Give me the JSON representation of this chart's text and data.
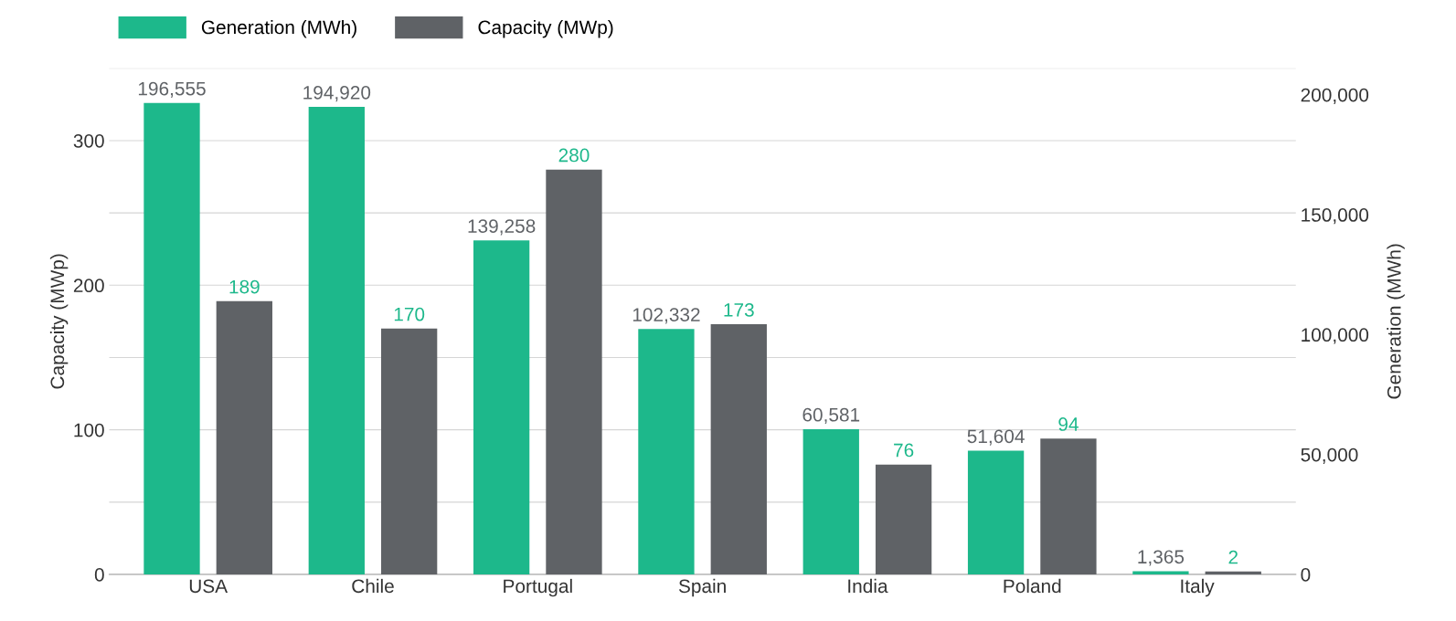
{
  "chart_data": {
    "type": "bar",
    "categories": [
      "USA",
      "Chile",
      "Portugal",
      "Spain",
      "India",
      "Poland",
      "Italy"
    ],
    "ylabel": "Capacity (MWp)",
    "y2label": "Generation (MWh)",
    "series": [
      {
        "name": "Generation (MWh)",
        "color": "#1db88b",
        "axis": "y2",
        "values": [
          196555,
          194920,
          139258,
          102332,
          60581,
          51604,
          1365
        ],
        "value_labels": [
          "196,555",
          "194,920",
          "139,258",
          "102,332",
          "60,581",
          "51,604",
          "1,365"
        ]
      },
      {
        "name": "Capacity (MWp)",
        "color": "#5f6266",
        "axis": "y",
        "values": [
          189,
          170,
          280,
          173,
          76,
          94,
          2
        ],
        "value_labels": [
          "189",
          "170",
          "280",
          "173",
          "76",
          "94",
          "2"
        ]
      }
    ],
    "ylim": [
      0,
      350
    ],
    "yticks": [
      0,
      {
        "value": 50,
        "label": null
      },
      100,
      {
        "value": 150,
        "label": null
      },
      200,
      {
        "value": 250,
        "label": null
      },
      300,
      {
        "value": 350,
        "label": null
      }
    ],
    "y2lim": [
      0,
      211000
    ],
    "y2ticks": [
      0,
      {
        "value": 50000,
        "label": "50,000"
      },
      {
        "value": 100000,
        "label": "100,000"
      },
      {
        "value": 150000,
        "label": "150,000"
      },
      {
        "value": 200000,
        "label": "200,000"
      }
    ],
    "grid": "y",
    "legend": "top left"
  }
}
